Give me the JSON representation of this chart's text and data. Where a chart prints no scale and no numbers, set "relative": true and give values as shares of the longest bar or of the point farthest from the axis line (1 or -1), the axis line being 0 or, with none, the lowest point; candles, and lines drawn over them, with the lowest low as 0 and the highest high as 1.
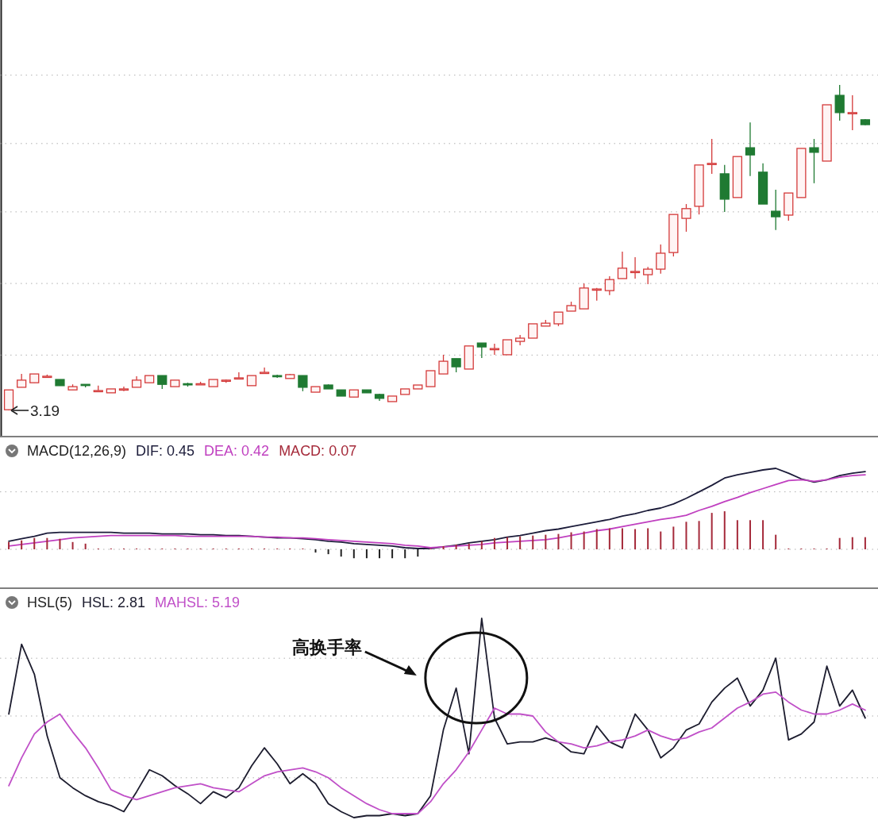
{
  "chart_data": [
    {
      "type": "candlestick",
      "relative": true,
      "annotations": [
        "3.19"
      ],
      "ref_lines": [
        {
          "axis": "y",
          "value": 1.03,
          "color": "#b0b0b0",
          "line_style": "dotted"
        },
        {
          "axis": "y",
          "value": 0.82,
          "color": "#b0b0b0",
          "line_style": "dotted"
        },
        {
          "axis": "y",
          "value": 0.61,
          "color": "#b0b0b0",
          "line_style": "dotted"
        },
        {
          "axis": "y",
          "value": 0.39,
          "color": "#b0b0b0",
          "line_style": "dotted"
        },
        {
          "axis": "y",
          "value": 0.17,
          "color": "#b0b0b0",
          "line_style": "dotted"
        }
      ],
      "categories": [
        null,
        null,
        null,
        null,
        null,
        null,
        null,
        null,
        null,
        null,
        null,
        null,
        null,
        null,
        null,
        null,
        null,
        null,
        null,
        null,
        null,
        null,
        null,
        null,
        null,
        null,
        null,
        null,
        null,
        null,
        null,
        null,
        null,
        null,
        null,
        null,
        null,
        null,
        null,
        null,
        null,
        null,
        null,
        null,
        null,
        null,
        null,
        null,
        null,
        null,
        null,
        null,
        null,
        null,
        null,
        null,
        null,
        null,
        null,
        null,
        null,
        null,
        null,
        null,
        null,
        null,
        null,
        null
      ],
      "ohlc": [
        [
          0.002,
          0.063,
          0,
          0.063
        ],
        [
          0.071,
          0.112,
          0.071,
          0.093
        ],
        [
          0.085,
          0.112,
          0.085,
          0.112
        ],
        [
          0.105,
          0.11,
          0.1,
          0.105
        ],
        [
          0.095,
          0.095,
          0.076,
          0.076
        ],
        [
          0.063,
          0.08,
          0.063,
          0.073
        ],
        [
          0.08,
          0.08,
          0.071,
          0.078
        ],
        [
          0.059,
          0.076,
          0.059,
          0.061
        ],
        [
          0.054,
          0.066,
          0.054,
          0.066
        ],
        [
          0.066,
          0.073,
          0.059,
          0.066
        ],
        [
          0.071,
          0.105,
          0.071,
          0.093
        ],
        [
          0.085,
          0.107,
          0.085,
          0.107
        ],
        [
          0.107,
          0.107,
          0.066,
          0.08
        ],
        [
          0.073,
          0.093,
          0.073,
          0.093
        ],
        [
          0.082,
          0.085,
          0.073,
          0.08
        ],
        [
          0.08,
          0.088,
          0.08,
          0.082
        ],
        [
          0.073,
          0.095,
          0.073,
          0.095
        ],
        [
          0.093,
          0.095,
          0.085,
          0.093
        ],
        [
          0.098,
          0.117,
          0.098,
          0.1
        ],
        [
          0.076,
          0.107,
          0.076,
          0.107
        ],
        [
          0.115,
          0.132,
          0.115,
          0.117
        ],
        [
          0.107,
          0.11,
          0.1,
          0.105
        ],
        [
          0.098,
          0.112,
          0.098,
          0.11
        ],
        [
          0.107,
          0.107,
          0.059,
          0.071
        ],
        [
          0.056,
          0.073,
          0.056,
          0.073
        ],
        [
          0.078,
          0.08,
          0.066,
          0.066
        ],
        [
          0.063,
          0.063,
          0.044,
          0.044
        ],
        [
          0.041,
          0.063,
          0.041,
          0.063
        ],
        [
          0.063,
          0.063,
          0.054,
          0.054
        ],
        [
          0.049,
          0.051,
          0.029,
          0.037
        ],
        [
          0.027,
          0.044,
          0.027,
          0.044
        ],
        [
          0.049,
          0.066,
          0.049,
          0.066
        ],
        [
          0.066,
          0.078,
          0.066,
          0.078
        ],
        [
          0.073,
          0.122,
          0.073,
          0.122
        ],
        [
          0.112,
          0.171,
          0.112,
          0.151
        ],
        [
          0.159,
          0.159,
          0.117,
          0.134
        ],
        [
          0.127,
          0.198,
          0.127,
          0.198
        ],
        [
          0.207,
          0.207,
          0.161,
          0.195
        ],
        [
          0.19,
          0.205,
          0.171,
          0.19
        ],
        [
          0.171,
          0.217,
          0.171,
          0.217
        ],
        [
          0.212,
          0.232,
          0.2,
          0.222
        ],
        [
          0.222,
          0.266,
          0.222,
          0.266
        ],
        [
          0.259,
          0.278,
          0.259,
          0.268
        ],
        [
          0.266,
          0.302,
          0.259,
          0.302
        ],
        [
          0.305,
          0.334,
          0.305,
          0.322
        ],
        [
          0.312,
          0.39,
          0.312,
          0.376
        ],
        [
          0.373,
          0.376,
          0.337,
          0.373
        ],
        [
          0.368,
          0.412,
          0.354,
          0.402
        ],
        [
          0.405,
          0.488,
          0.405,
          0.437
        ],
        [
          0.427,
          0.471,
          0.405,
          0.427
        ],
        [
          0.417,
          0.441,
          0.388,
          0.434
        ],
        [
          0.434,
          0.51,
          0.42,
          0.483
        ],
        [
          0.485,
          0.602,
          0.473,
          0.602
        ],
        [
          0.59,
          0.634,
          0.549,
          0.62
        ],
        [
          0.627,
          0.754,
          0.602,
          0.754
        ],
        [
          0.759,
          0.834,
          0.727,
          0.759
        ],
        [
          0.727,
          0.754,
          0.61,
          0.649
        ],
        [
          0.654,
          0.78,
          0.654,
          0.78
        ],
        [
          0.807,
          0.885,
          0.72,
          0.785
        ],
        [
          0.732,
          0.759,
          0.634,
          0.634
        ],
        [
          0.612,
          0.678,
          0.554,
          0.595
        ],
        [
          0.6,
          0.668,
          0.583,
          0.668
        ],
        [
          0.654,
          0.805,
          0.654,
          0.805
        ],
        [
          0.807,
          0.834,
          0.698,
          0.793
        ],
        [
          0.766,
          0.939,
          0.766,
          0.939
        ],
        [
          0.968,
          1,
          0.89,
          0.915
        ],
        [
          0.915,
          0.968,
          0.861,
          0.915
        ],
        [
          0.893,
          0.895,
          0.876,
          0.878
        ]
      ],
      "colors": [
        "#d43a3a",
        "#d43a3a",
        "#d43a3a",
        "#d43a3a",
        "#1f7a32",
        "#d43a3a",
        "#1f7a32",
        "#d43a3a",
        "#d43a3a",
        "#d43a3a",
        "#d43a3a",
        "#d43a3a",
        "#1f7a32",
        "#d43a3a",
        "#1f7a32",
        "#d43a3a",
        "#d43a3a",
        "#d43a3a",
        "#d43a3a",
        "#d43a3a",
        "#d43a3a",
        "#1f7a32",
        "#d43a3a",
        "#1f7a32",
        "#d43a3a",
        "#1f7a32",
        "#1f7a32",
        "#d43a3a",
        "#1f7a32",
        "#1f7a32",
        "#d43a3a",
        "#d43a3a",
        "#d43a3a",
        "#d43a3a",
        "#d43a3a",
        "#1f7a32",
        "#d43a3a",
        "#1f7a32",
        "#d43a3a",
        "#d43a3a",
        "#d43a3a",
        "#d43a3a",
        "#d43a3a",
        "#d43a3a",
        "#d43a3a",
        "#d43a3a",
        "#d43a3a",
        "#d43a3a",
        "#d43a3a",
        "#d43a3a",
        "#d43a3a",
        "#d43a3a",
        "#d43a3a",
        "#d43a3a",
        "#d43a3a",
        "#d43a3a",
        "#1f7a32",
        "#d43a3a",
        "#1f7a32",
        "#1f7a32",
        "#1f7a32",
        "#d43a3a",
        "#d43a3a",
        "#1f7a32",
        "#d43a3a",
        "#1f7a32",
        "#d43a3a",
        "#1f7a32"
      ]
    },
    {
      "type": "line",
      "title": "MACD(12,26,9)",
      "relative": true,
      "legend": "top left",
      "ref_lines": [
        {
          "axis": "y",
          "value": 0.71,
          "color": "#b0b0b0",
          "line_style": "dotted"
        },
        {
          "axis": "y",
          "value": 0,
          "color": "#b0b0b0",
          "line_style": "dotted"
        }
      ],
      "categories": [
        null,
        null,
        null,
        null,
        null,
        null,
        null,
        null,
        null,
        null,
        null,
        null,
        null,
        null,
        null,
        null,
        null,
        null,
        null,
        null,
        null,
        null,
        null,
        null,
        null,
        null,
        null,
        null,
        null,
        null,
        null,
        null,
        null,
        null,
        null,
        null,
        null,
        null,
        null,
        null,
        null,
        null,
        null,
        null,
        null,
        null,
        null,
        null,
        null,
        null,
        null,
        null,
        null,
        null,
        null,
        null,
        null,
        null,
        null,
        null,
        null,
        null,
        null,
        null,
        null,
        null,
        null,
        null
      ],
      "series": [
        {
          "name": "DIF: 0.45",
          "color": "#1c1c3a",
          "values": [
            0.1,
            0.13,
            0.16,
            0.2,
            0.21,
            0.21,
            0.21,
            0.21,
            0.21,
            0.2,
            0.2,
            0.2,
            0.19,
            0.19,
            0.19,
            0.18,
            0.18,
            0.17,
            0.17,
            0.16,
            0.15,
            0.14,
            0.14,
            0.13,
            0.12,
            0.1,
            0.09,
            0.07,
            0.06,
            0.05,
            0.04,
            0.02,
            0.01,
            0.01,
            0.03,
            0.05,
            0.08,
            0.1,
            0.12,
            0.15,
            0.17,
            0.2,
            0.23,
            0.25,
            0.28,
            0.31,
            0.34,
            0.37,
            0.41,
            0.44,
            0.48,
            0.51,
            0.56,
            0.63,
            0.71,
            0.79,
            0.88,
            0.92,
            0.95,
            0.98,
            1,
            0.94,
            0.87,
            0.83,
            0.86,
            0.91,
            0.94,
            0.96
          ]
        },
        {
          "name": "DEA: 0.42",
          "color": "#c040c0",
          "values": [
            0.04,
            0.06,
            0.08,
            0.1,
            0.12,
            0.14,
            0.15,
            0.16,
            0.17,
            0.17,
            0.17,
            0.17,
            0.17,
            0.17,
            0.16,
            0.16,
            0.16,
            0.16,
            0.16,
            0.16,
            0.15,
            0.15,
            0.14,
            0.14,
            0.13,
            0.12,
            0.11,
            0.1,
            0.09,
            0.08,
            0.07,
            0.05,
            0.04,
            0.02,
            0.03,
            0.04,
            0.05,
            0.06,
            0.08,
            0.09,
            0.1,
            0.11,
            0.12,
            0.14,
            0.17,
            0.2,
            0.23,
            0.25,
            0.28,
            0.31,
            0.34,
            0.37,
            0.39,
            0.42,
            0.48,
            0.53,
            0.59,
            0.64,
            0.7,
            0.75,
            0.8,
            0.85,
            0.86,
            0.84,
            0.86,
            0.89,
            0.91,
            0.92
          ]
        },
        {
          "name": "MACD: 0.07",
          "type": "bar",
          "color": "#a52a3a",
          "values": [
            0.09,
            0.11,
            0.14,
            0.14,
            0.13,
            0.09,
            0.07,
            0.01,
            0.01,
            0.01,
            0.01,
            0.01,
            0.01,
            0.01,
            0.01,
            0.01,
            0.01,
            0.01,
            0.01,
            0.01,
            0.01,
            0.01,
            0.01,
            0.01,
            -0.04,
            -0.06,
            -0.09,
            -0.11,
            -0.11,
            -0.11,
            -0.11,
            -0.11,
            -0.09,
            0.01,
            0.04,
            0.06,
            0.07,
            0.1,
            0.14,
            0.15,
            0.16,
            0.17,
            0.18,
            0.19,
            0.21,
            0.22,
            0.25,
            0.26,
            0.26,
            0.25,
            0.26,
            0.22,
            0.28,
            0.34,
            0.35,
            0.45,
            0.47,
            0.36,
            0.36,
            0.36,
            0.18,
            0.01,
            0.01,
            0.01,
            0.01,
            0.14,
            0.15,
            0.15
          ],
          "colors": [
            "#a52a3a",
            "#a52a3a",
            "#a52a3a",
            "#a52a3a",
            "#a52a3a",
            "#a52a3a",
            "#a52a3a",
            "#a52a3a",
            "#a52a3a",
            "#a52a3a",
            "#a52a3a",
            "#a52a3a",
            "#a52a3a",
            "#a52a3a",
            "#a52a3a",
            "#a52a3a",
            "#a52a3a",
            "#a52a3a",
            "#a52a3a",
            "#a52a3a",
            "#a52a3a",
            "#a52a3a",
            "#a52a3a",
            "#a52a3a",
            "#222222",
            "#222222",
            "#222222",
            "#222222",
            "#222222",
            "#222222",
            "#222222",
            "#222222",
            "#222222",
            "#a52a3a",
            "#a52a3a",
            "#a52a3a",
            "#a52a3a",
            "#a52a3a",
            "#a52a3a",
            "#a52a3a",
            "#a52a3a",
            "#a52a3a",
            "#a52a3a",
            "#a52a3a",
            "#a52a3a",
            "#a52a3a",
            "#a52a3a",
            "#a52a3a",
            "#a52a3a",
            "#a52a3a",
            "#a52a3a",
            "#a52a3a",
            "#a52a3a",
            "#a52a3a",
            "#a52a3a",
            "#a52a3a",
            "#a52a3a",
            "#a52a3a",
            "#a52a3a",
            "#a52a3a",
            "#a52a3a",
            "#a52a3a",
            "#a52a3a",
            "#a52a3a",
            "#a52a3a",
            "#a52a3a",
            "#a52a3a",
            "#a52a3a"
          ]
        }
      ]
    },
    {
      "type": "line",
      "title": "HSL(5)",
      "relative": true,
      "legend": "top left",
      "annotations": [
        "高换手率"
      ],
      "ref_lines": [
        {
          "axis": "y",
          "value": 0.8,
          "color": "#b0b0b0",
          "line_style": "dotted"
        },
        {
          "axis": "y",
          "value": 0.51,
          "color": "#b0b0b0",
          "line_style": "dotted"
        },
        {
          "axis": "y",
          "value": 0.2,
          "color": "#b0b0b0",
          "line_style": "dotted"
        }
      ],
      "categories": [
        null,
        null,
        null,
        null,
        null,
        null,
        null,
        null,
        null,
        null,
        null,
        null,
        null,
        null,
        null,
        null,
        null,
        null,
        null,
        null,
        null,
        null,
        null,
        null,
        null,
        null,
        null,
        null,
        null,
        null,
        null,
        null,
        null,
        null,
        null,
        null,
        null,
        null,
        null,
        null,
        null,
        null,
        null,
        null,
        null,
        null,
        null,
        null,
        null,
        null,
        null,
        null,
        null,
        null,
        null,
        null,
        null,
        null,
        null,
        null,
        null,
        null,
        null,
        null,
        null,
        null,
        null,
        null
      ],
      "series": [
        {
          "name": "HSL: 2.81",
          "color": "#1c1c2e",
          "values": [
            0.52,
            0.87,
            0.72,
            0.41,
            0.2,
            0.15,
            0.11,
            0.08,
            0.06,
            0.03,
            0.13,
            0.24,
            0.21,
            0.16,
            0.12,
            0.07,
            0.13,
            0.1,
            0.15,
            0.26,
            0.35,
            0.27,
            0.17,
            0.22,
            0.17,
            0.07,
            0.03,
            0,
            0.01,
            0.01,
            0.02,
            0.01,
            0.02,
            0.11,
            0.44,
            0.65,
            0.32,
            1,
            0.5,
            0.37,
            0.38,
            0.38,
            0.4,
            0.38,
            0.33,
            0.32,
            0.46,
            0.38,
            0.35,
            0.52,
            0.44,
            0.3,
            0.35,
            0.44,
            0.47,
            0.58,
            0.65,
            0.7,
            0.56,
            0.64,
            0.8,
            0.39,
            0.42,
            0.48,
            0.76,
            0.56,
            0.64,
            0.5
          ]
        },
        {
          "name": "MAHSL: 5.19",
          "color": "#c050c8",
          "values": [
            0.16,
            0.3,
            0.42,
            0.48,
            0.52,
            0.43,
            0.35,
            0.25,
            0.14,
            0.11,
            0.09,
            0.11,
            0.13,
            0.15,
            0.16,
            0.17,
            0.15,
            0.14,
            0.13,
            0.17,
            0.21,
            0.23,
            0.24,
            0.25,
            0.23,
            0.2,
            0.15,
            0.11,
            0.07,
            0.04,
            0.02,
            0.02,
            0.02,
            0.08,
            0.17,
            0.24,
            0.33,
            0.44,
            0.55,
            0.52,
            0.52,
            0.51,
            0.43,
            0.38,
            0.37,
            0.35,
            0.36,
            0.38,
            0.39,
            0.41,
            0.44,
            0.41,
            0.39,
            0.4,
            0.43,
            0.45,
            0.5,
            0.55,
            0.58,
            0.62,
            0.63,
            0.58,
            0.54,
            0.52,
            0.52,
            0.54,
            0.57,
            0.54
          ]
        }
      ]
    }
  ]
}
